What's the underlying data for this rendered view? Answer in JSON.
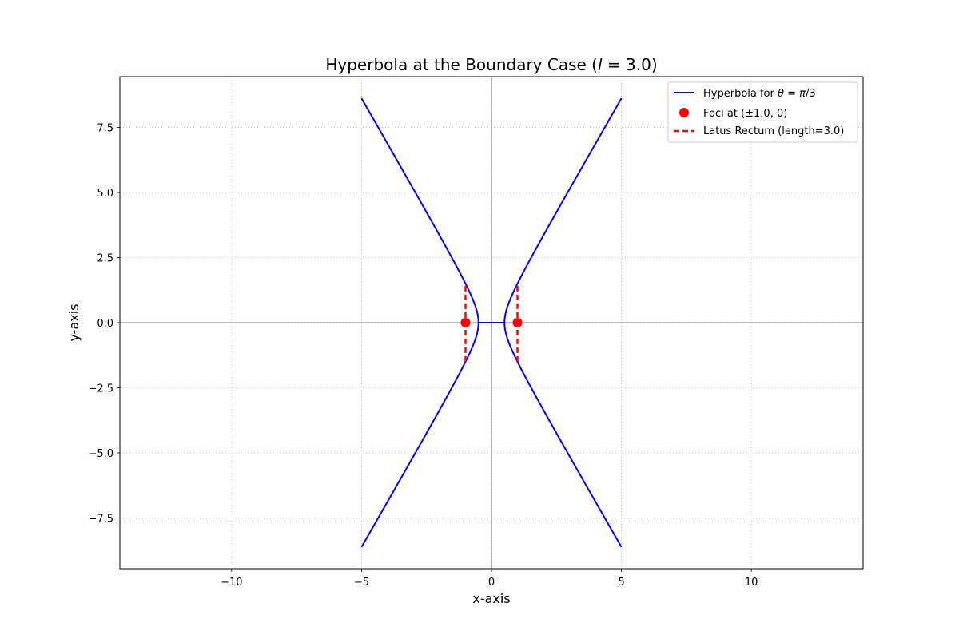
{
  "chart_data": {
    "type": "line",
    "title": "Hyperbola at the Boundary Case (l = 3.0)",
    "xlabel": "x-axis",
    "ylabel": "y-axis",
    "xlim": [
      -14.3,
      14.3
    ],
    "ylim": [
      -9.45,
      9.45
    ],
    "xticks": [
      -10,
      -5,
      0,
      5,
      10
    ],
    "xtick_labels": [
      "−10",
      "−5",
      "0",
      "5",
      "10"
    ],
    "yticks": [
      -7.5,
      -5.0,
      -2.5,
      0.0,
      2.5,
      5.0,
      7.5
    ],
    "ytick_labels": [
      "−7.5",
      "−5.0",
      "−2.5",
      "0.0",
      "2.5",
      "5.0",
      "7.5"
    ],
    "grid": true,
    "grid_style": "dotted",
    "legend_position": "top-right",
    "colors": {
      "hyperbola": "#0000ff",
      "foci": "#ff0000",
      "latus": "#ff0000",
      "axes": "#000000",
      "grid": "#b0b0b0"
    },
    "series": [
      {
        "name": "Hyperbola for θ = π/3",
        "kind": "line",
        "a": 0.5,
        "b_squared": 0.75,
        "x_domain": [
          -5,
          5
        ],
        "segments": [
          {
            "x": [
              -5.0,
              -4.0,
              -3.0,
              -2.0,
              -1.5,
              -1.0,
              -0.75,
              -0.6,
              -0.5,
              -0.6,
              -0.75,
              -1.0,
              -1.5,
              -2.0,
              -3.0,
              -4.0,
              -5.0
            ],
            "y": [
              8.617,
              6.874,
              5.123,
              3.354,
              2.449,
              1.5,
              0.968,
              0.574,
              0.0,
              -0.574,
              -0.968,
              -1.5,
              -2.449,
              -3.354,
              -5.123,
              -6.874,
              -8.617
            ]
          },
          {
            "x": [
              -0.5,
              0.5
            ],
            "y": [
              0.0,
              0.0
            ]
          },
          {
            "x": [
              5.0,
              4.0,
              3.0,
              2.0,
              1.5,
              1.0,
              0.75,
              0.6,
              0.5,
              0.6,
              0.75,
              1.0,
              1.5,
              2.0,
              3.0,
              4.0,
              5.0
            ],
            "y": [
              8.617,
              6.874,
              5.123,
              3.354,
              2.449,
              1.5,
              0.968,
              0.574,
              0.0,
              -0.574,
              -0.968,
              -1.5,
              -2.449,
              -3.354,
              -5.123,
              -6.874,
              -8.617
            ]
          }
        ]
      },
      {
        "name": "Foci at (±1.0, 0)",
        "kind": "scatter",
        "points": [
          {
            "x": -1.0,
            "y": 0.0
          },
          {
            "x": 1.0,
            "y": 0.0
          }
        ]
      },
      {
        "name": "Latus Rectum (length=3.0)",
        "kind": "dashed-line",
        "segments": [
          {
            "x": [
              -1.0,
              -1.0
            ],
            "y": [
              -1.5,
              1.5
            ]
          },
          {
            "x": [
              1.0,
              1.0
            ],
            "y": [
              -1.5,
              1.5
            ]
          }
        ]
      }
    ]
  }
}
